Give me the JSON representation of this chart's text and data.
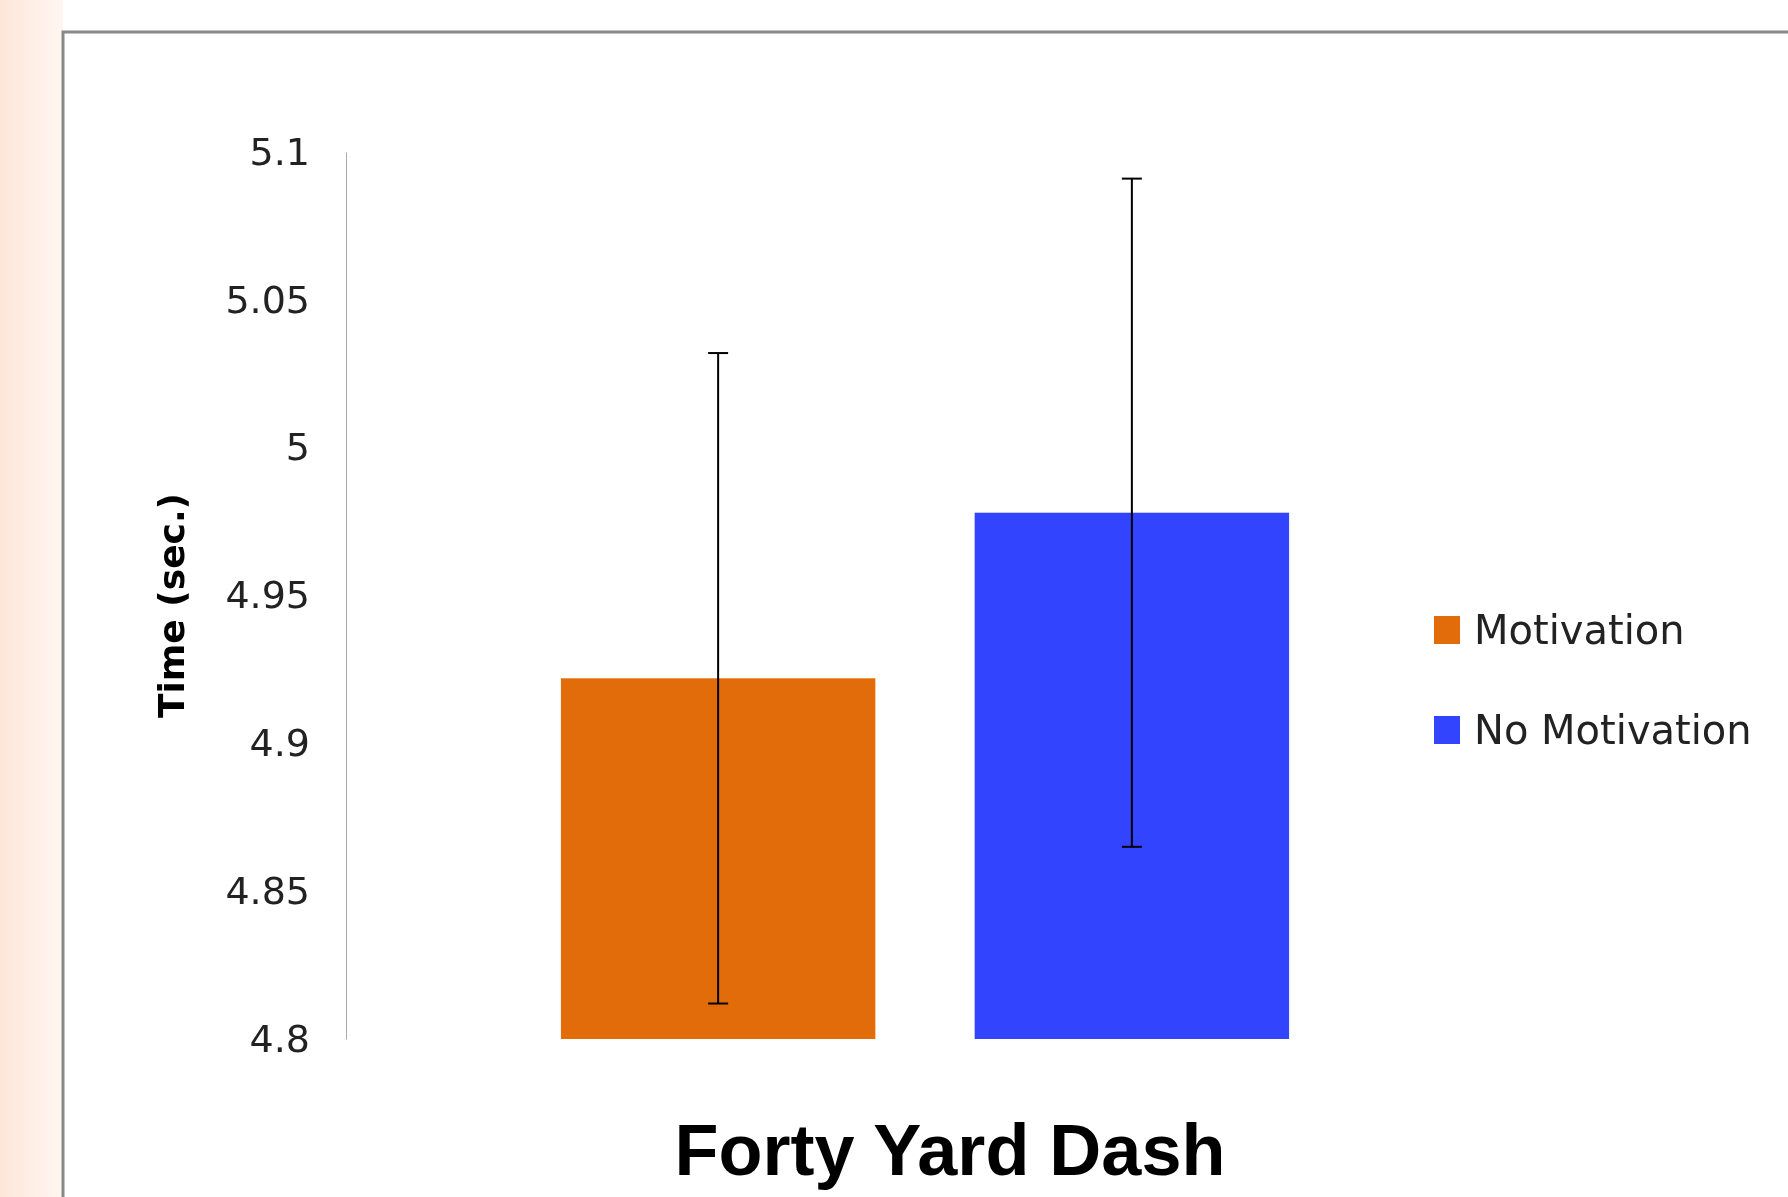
{
  "chart_data": {
    "type": "bar",
    "title": "Forty Yard Dash",
    "ylabel": "Time (sec.)",
    "categories": [
      null
    ],
    "series": [
      {
        "name": "Motivation",
        "color": "#e36c0a",
        "values": [
          4.922
        ],
        "errors": [
          0.11
        ]
      },
      {
        "name": "No Motivation",
        "color": "#3344ff",
        "values": [
          4.978
        ],
        "errors": [
          0.113
        ]
      }
    ],
    "ylim": [
      4.8,
      5.1
    ],
    "yticks": [
      4.8,
      4.85,
      4.9,
      4.95,
      5,
      5.05,
      5.1
    ],
    "legend": "right",
    "grid": false
  }
}
